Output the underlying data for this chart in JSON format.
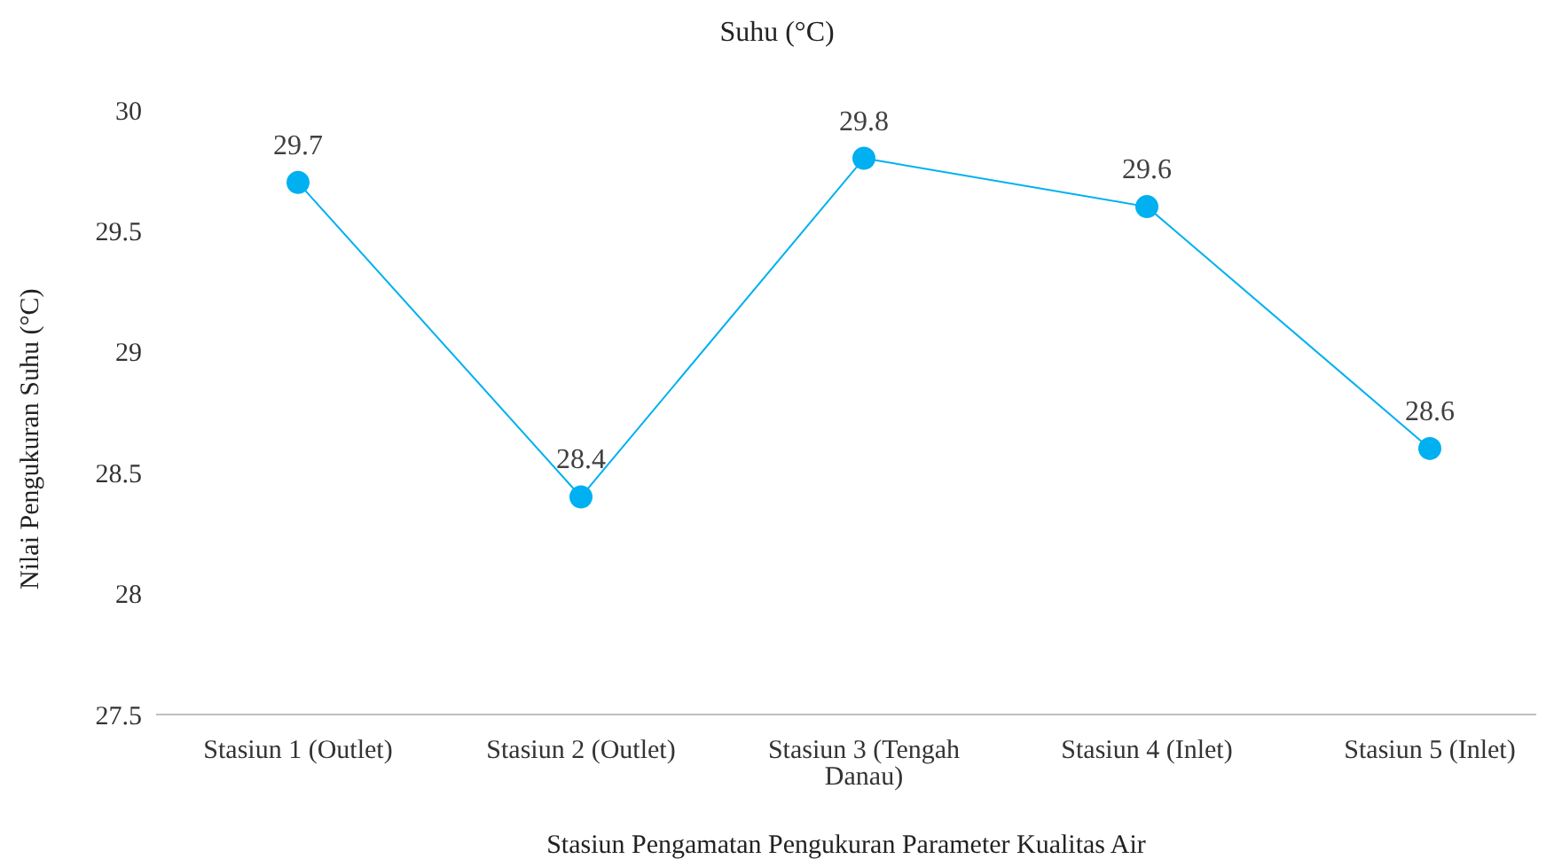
{
  "chart_data": {
    "type": "line",
    "title": "Suhu (°C)",
    "xlabel": "Stasiun Pengamatan Pengukuran Parameter Kualitas Air",
    "ylabel": "Nilai Pengukuran Suhu (°C)",
    "categories": [
      "Stasiun 1 (Outlet)",
      "Stasiun 2 (Outlet)",
      "Stasiun 3 (Tengah Danau)",
      "Stasiun 4 (Inlet)",
      "Stasiun 5 (Inlet)"
    ],
    "series": [
      {
        "color": "#00b0f0",
        "values": [
          29.7,
          28.4,
          29.8,
          29.6,
          28.6
        ]
      }
    ],
    "ylim": [
      27.5,
      30
    ],
    "yticks": [
      27.5,
      28,
      28.5,
      29,
      29.5,
      30
    ],
    "data_labels": true,
    "marker": "circle",
    "grid": false,
    "legend": false
  }
}
